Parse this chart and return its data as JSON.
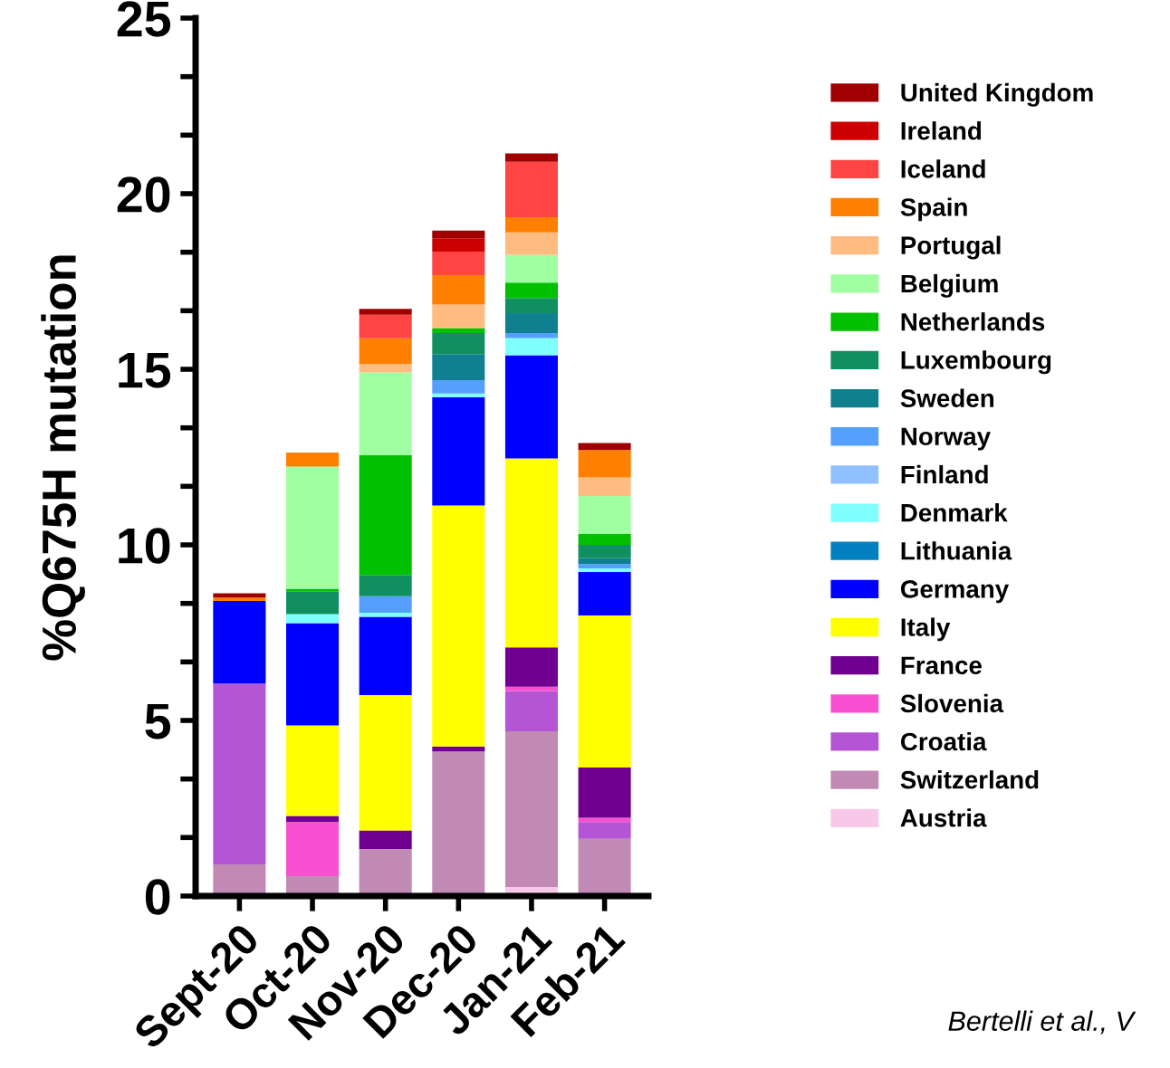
{
  "chart_data": {
    "type": "bar",
    "stacked": true,
    "ylabel": "%Q675H mutation",
    "categories": [
      "Sept-20",
      "Oct-20",
      "Nov-20",
      "Dec-20",
      "Jan-21",
      "Feb-21"
    ],
    "ylim": [
      0,
      25
    ],
    "yticks": [
      0,
      {
        "value": 1.667,
        "label": null
      },
      {
        "value": 3.333,
        "label": null
      },
      5,
      {
        "value": 6.667,
        "label": null
      },
      {
        "value": 8.333,
        "label": null
      },
      10,
      {
        "value": 11.667,
        "label": null
      },
      {
        "value": 13.333,
        "label": null
      },
      15,
      {
        "value": 16.667,
        "label": null
      },
      {
        "value": 18.333,
        "label": null
      },
      20,
      {
        "value": 21.667,
        "label": null
      },
      {
        "value": 23.333,
        "label": null
      },
      25
    ],
    "grid": false,
    "legend": "right",
    "annotations": [
      "Bertelli et al., V"
    ],
    "series": [
      {
        "name": "Austria",
        "color": "#f8c8e8",
        "values": [
          0,
          0,
          0,
          0,
          0.26,
          0
        ]
      },
      {
        "name": "Switzerland",
        "color": "#c08ab5",
        "values": [
          0.9,
          0.57,
          1.34,
          4.12,
          4.43,
          1.63
        ]
      },
      {
        "name": "Croatia",
        "color": "#b455d5",
        "values": [
          5.15,
          0,
          0,
          0,
          1.15,
          0.48
        ]
      },
      {
        "name": "Slovenia",
        "color": "#f850d0",
        "values": [
          0,
          1.54,
          0,
          0,
          0.12,
          0.12
        ]
      },
      {
        "name": "France",
        "color": "#700090",
        "values": [
          0,
          0.17,
          0.53,
          0.14,
          1.12,
          1.43
        ]
      },
      {
        "name": "Italy",
        "color": "#ffff00",
        "values": [
          0,
          2.58,
          3.85,
          6.86,
          5.38,
          4.33
        ]
      },
      {
        "name": "Germany",
        "color": "#0000ff",
        "values": [
          2.35,
          2.91,
          2.23,
          3.09,
          2.94,
          1.24
        ]
      },
      {
        "name": "Lithuania",
        "color": "#0080c0",
        "values": [
          0,
          0,
          0,
          0,
          0,
          0
        ]
      },
      {
        "name": "Denmark",
        "color": "#80ffff",
        "values": [
          0,
          0.26,
          0.12,
          0.1,
          0.49,
          0.1
        ]
      },
      {
        "name": "Finland",
        "color": "#90c0ff",
        "values": [
          0,
          0,
          0,
          0,
          0,
          0
        ]
      },
      {
        "name": "Norway",
        "color": "#55a0ff",
        "values": [
          0,
          0,
          0.47,
          0.38,
          0.14,
          0.12
        ]
      },
      {
        "name": "Sweden",
        "color": "#108090",
        "values": [
          0,
          0,
          0,
          0.74,
          0.57,
          0.17
        ]
      },
      {
        "name": "Luxembourg",
        "color": "#109060",
        "values": [
          0,
          0.65,
          0.6,
          0.6,
          0.43,
          0.38
        ]
      },
      {
        "name": "Netherlands",
        "color": "#00c000",
        "values": [
          0,
          0.07,
          3.42,
          0.14,
          0.44,
          0.31
        ]
      },
      {
        "name": "Belgium",
        "color": "#a0ffa0",
        "values": [
          0,
          3.48,
          2.35,
          0,
          0.79,
          1.08
        ]
      },
      {
        "name": "Portugal",
        "color": "#ffbb80",
        "values": [
          0,
          0,
          0.24,
          0.67,
          0.64,
          0.53
        ]
      },
      {
        "name": "Spain",
        "color": "#ff8000",
        "values": [
          0.1,
          0.4,
          0.73,
          0.84,
          0.43,
          0.78
        ]
      },
      {
        "name": "Iceland",
        "color": "#ff4444",
        "values": [
          0,
          0,
          0.67,
          0.67,
          1.58,
          0
        ]
      },
      {
        "name": "Ireland",
        "color": "#cc0000",
        "values": [
          0,
          0,
          0,
          0.38,
          0,
          0
        ]
      },
      {
        "name": "United Kingdom",
        "color": "#a00000",
        "values": [
          0.12,
          0,
          0.17,
          0.22,
          0.24,
          0.2
        ]
      }
    ]
  }
}
